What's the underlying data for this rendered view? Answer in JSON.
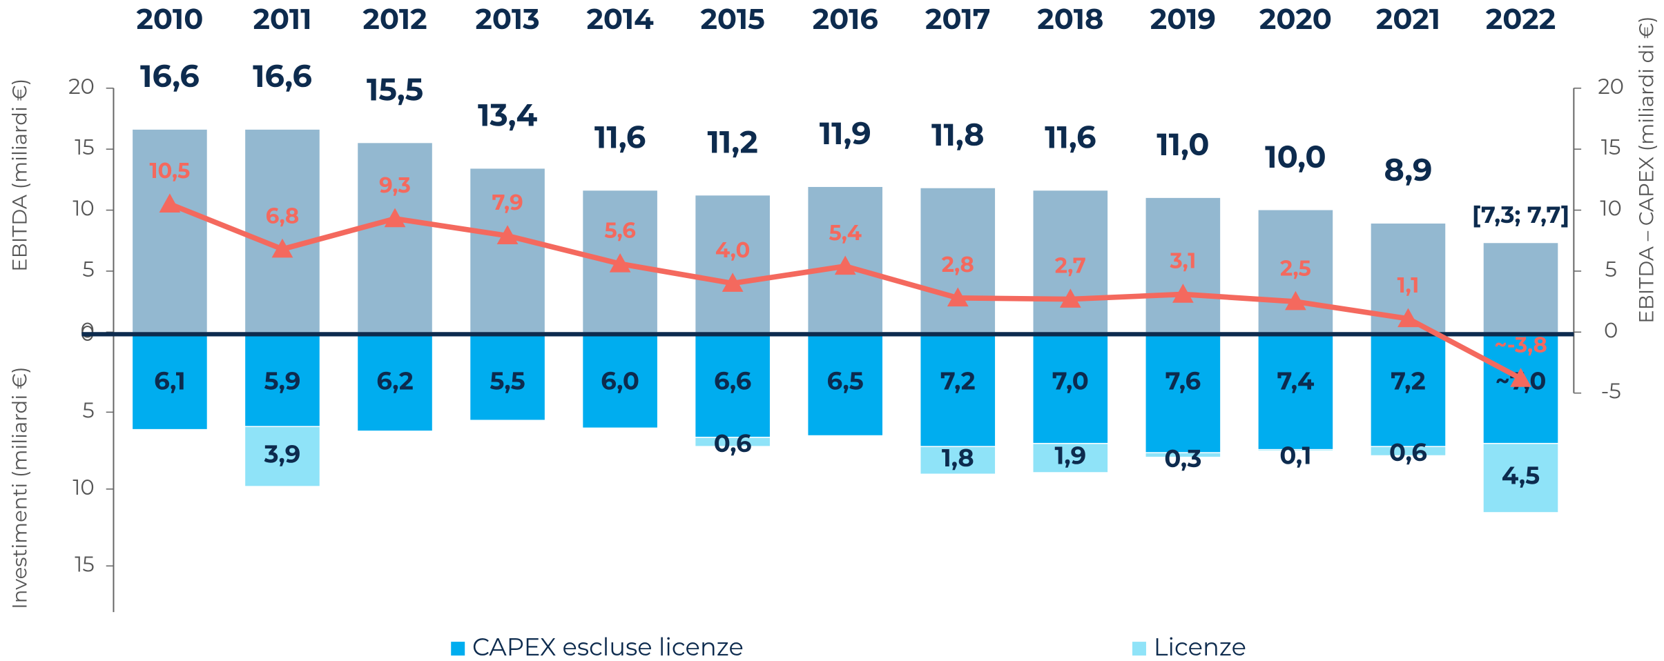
{
  "chart_data": [
    {
      "type": "bar",
      "categories": [
        "2010",
        "2011",
        "2012",
        "2013",
        "2014",
        "2015",
        "2016",
        "2017",
        "2018",
        "2019",
        "2020",
        "2021",
        "2022"
      ],
      "series": [
        {
          "type": "bar",
          "color": "#93b8d0",
          "values": [
            16.6,
            16.6,
            15.5,
            13.4,
            11.6,
            11.2,
            11.9,
            11.8,
            11.6,
            11.0,
            10.0,
            8.9,
            7.3
          ],
          "value_labels": [
            "16,6",
            "16,6",
            "15,5",
            "13,4",
            "11,6",
            "11,2",
            "11,9",
            "11,8",
            "11,6",
            "11,0",
            "10,0",
            "8,9",
            "[7,3; 7,7]"
          ]
        },
        {
          "type": "line",
          "axis": "y2",
          "color": "#f4695e",
          "values": [
            10.5,
            6.8,
            9.3,
            7.9,
            5.6,
            4.0,
            5.4,
            2.8,
            2.7,
            3.1,
            2.5,
            1.1,
            -3.8
          ],
          "value_labels": [
            "10,5",
            "6,8",
            "9,3",
            "7,9",
            "5,6",
            "4,0",
            "5,4",
            "2,8",
            "2,7",
            "3,1",
            "2,5",
            "1,1",
            "~-3,8"
          ]
        }
      ],
      "ylabel": "EBITDA (miliardi €)",
      "ylim": [
        0,
        20
      ],
      "yticks": [
        0,
        5,
        10,
        15,
        20
      ],
      "y2label": "EBITDA – CAPEX (miliardi di €)",
      "y2lim": [
        -5,
        20
      ],
      "y2ticks": [
        -5,
        0,
        5,
        10,
        15,
        20
      ]
    },
    {
      "type": "bar",
      "stacked": true,
      "inverted": true,
      "series": [
        {
          "name": "CAPEX escluse licenze",
          "color": "#00adef",
          "values": [
            6.1,
            5.9,
            6.2,
            5.5,
            6.0,
            6.6,
            6.5,
            7.2,
            7.0,
            7.6,
            7.4,
            7.2,
            7.0
          ],
          "value_labels": [
            "6,1",
            "5,9",
            "6,2",
            "5,5",
            "6,0",
            "6,6",
            "6,5",
            "7,2",
            "7,0",
            "7,6",
            "7,4",
            "7,2",
            "~7,0"
          ]
        },
        {
          "name": "Licenze",
          "color": "#8fe3f8",
          "values": [
            null,
            3.9,
            null,
            null,
            null,
            0.6,
            null,
            1.8,
            1.9,
            0.3,
            0.1,
            0.6,
            4.5
          ],
          "value_labels": [
            null,
            "3,9",
            null,
            null,
            null,
            "0,6",
            null,
            "1,8",
            "1,9",
            "0,3",
            "0,1",
            "0,6",
            "4,5"
          ]
        }
      ],
      "ylabel": "Investimenti (miliardi €)",
      "ylim": [
        0,
        18
      ],
      "yticks": [
        0,
        5,
        10,
        15
      ],
      "legend": "bottom"
    }
  ]
}
